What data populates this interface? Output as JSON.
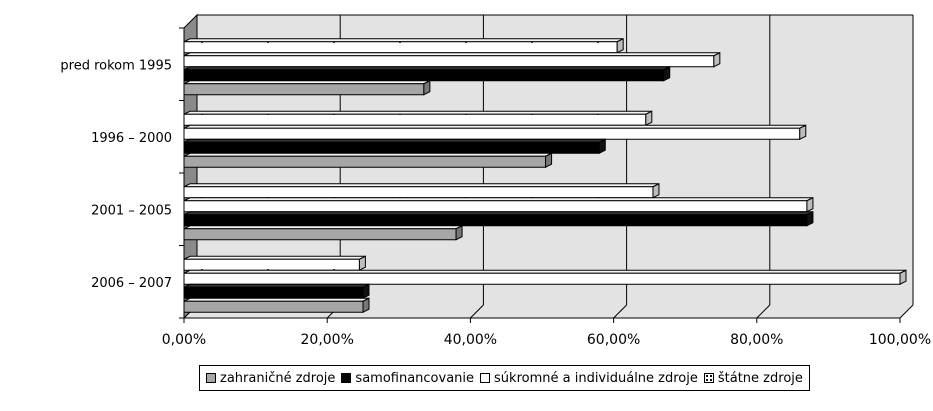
{
  "chart_data": {
    "type": "bar",
    "orientation": "horizontal",
    "style": "3d",
    "categories": [
      "pred rokom 1995",
      "1996 – 2000",
      "2001 – 2005",
      "2006 – 2007"
    ],
    "series": [
      {
        "name": "štátne zdroje",
        "color": "#ffffff",
        "pattern": "dotted",
        "values": [
          60.5,
          64.5,
          65.5,
          24.5
        ]
      },
      {
        "name": "súkromné a individuálne zdroje",
        "color": "#ffffff",
        "values": [
          74,
          86,
          87,
          100
        ]
      },
      {
        "name": "samofinancovanie",
        "color": "#000000",
        "values": [
          67,
          58,
          87,
          25
        ]
      },
      {
        "name": "zahraničné zdroje",
        "color": "#a6a6a6",
        "values": [
          33.5,
          50.5,
          38,
          25
        ]
      }
    ],
    "legend_order": [
      "zahraničné zdroje",
      "samofinancovanie",
      "súkromné a individuálne zdroje",
      "štátne zdroje"
    ],
    "xlim": [
      0,
      100
    ],
    "xticks": [
      "0,00%",
      "20,00%",
      "40,00%",
      "60,00%",
      "80,00%",
      "100,00%"
    ],
    "grid": true,
    "legend_position": "bottom"
  }
}
